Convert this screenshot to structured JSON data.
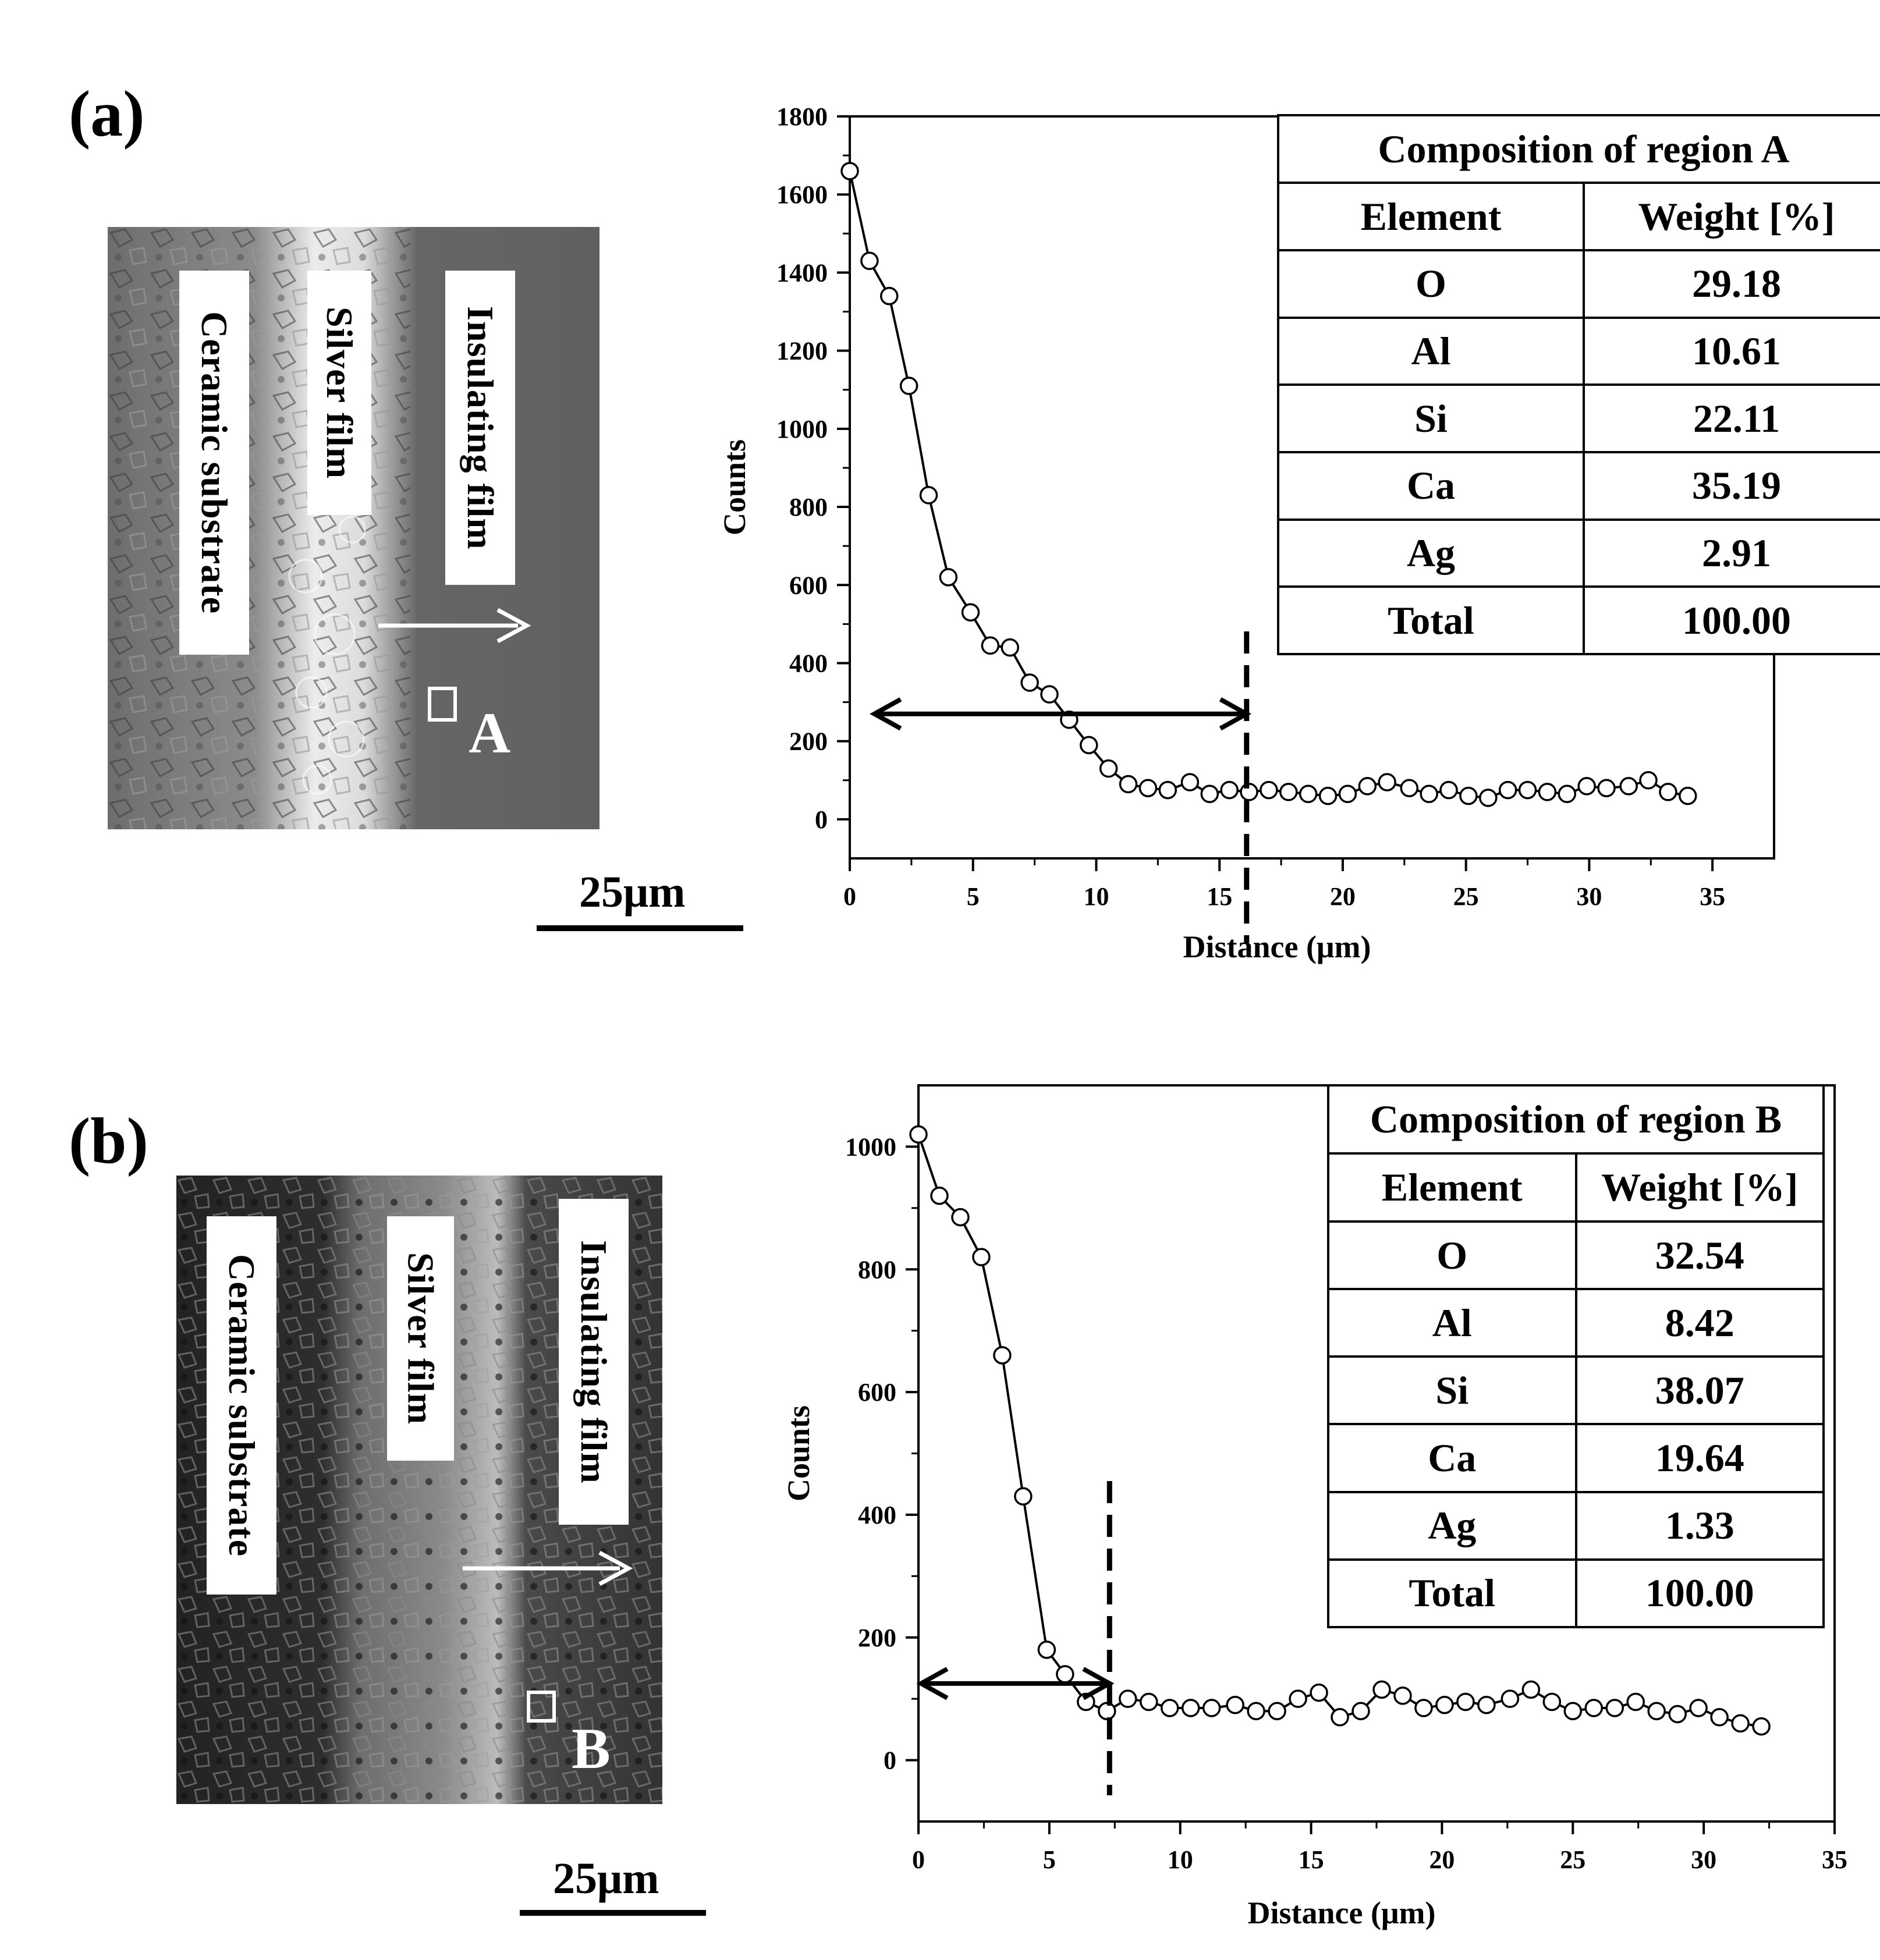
{
  "panels": [
    {
      "label": "(a)",
      "sem": {
        "layers": [
          "Ceramic substrate",
          "Silver film",
          "Insulating film"
        ],
        "region_marker": "A",
        "scale_bar": "25μm"
      },
      "table": {
        "title": "Composition of region A",
        "header": [
          "Element",
          "Weight [%]"
        ],
        "rows": [
          [
            "O",
            "29.18"
          ],
          [
            "Al",
            "10.61"
          ],
          [
            "Si",
            "22.11"
          ],
          [
            "Ca",
            "35.19"
          ],
          [
            "Ag",
            "2.91"
          ],
          [
            "Total",
            "100.00"
          ]
        ]
      }
    },
    {
      "label": "(b)",
      "sem": {
        "layers": [
          "Ceramic substrate",
          "Silver film",
          "Insulating film"
        ],
        "region_marker": "B",
        "scale_bar": "25μm"
      },
      "table": {
        "title": "Composition of region B",
        "header": [
          "Element",
          "Weight [%]"
        ],
        "rows": [
          [
            "O",
            "32.54"
          ],
          [
            "Al",
            "8.42"
          ],
          [
            "Si",
            "38.07"
          ],
          [
            "Ca",
            "19.64"
          ],
          [
            "Ag",
            "1.33"
          ],
          [
            "Total",
            "100.00"
          ]
        ]
      }
    }
  ],
  "chart_data": [
    {
      "type": "line",
      "xlabel": "Distance (μm)",
      "ylabel": "Counts",
      "xlim": [
        0,
        37.5
      ],
      "ylim": [
        -100,
        1800
      ],
      "xticks": [
        0,
        5,
        10,
        15,
        20,
        25,
        30,
        35
      ],
      "yticks": [
        0,
        200,
        400,
        600,
        800,
        1000,
        1200,
        1400,
        1600,
        1800
      ],
      "marker": "open-circle",
      "grid": false,
      "interface_line_x": 16.1,
      "arrow_x": [
        1.0,
        16.1
      ],
      "arrow_y": 270,
      "series": [
        {
          "x": [
            0.0,
            0.8,
            1.6,
            2.4,
            3.2,
            4.0,
            4.9,
            5.7,
            6.5,
            7.3,
            8.1,
            8.9,
            9.7,
            10.5,
            11.3,
            12.1,
            12.9,
            13.8,
            14.6,
            15.4,
            16.2,
            17.0,
            17.8,
            18.6,
            19.4,
            20.2,
            21.0,
            21.8,
            22.7,
            23.5,
            24.3,
            25.1,
            25.9,
            26.7,
            27.5,
            28.3,
            29.1,
            29.9,
            30.7,
            31.6,
            32.4,
            33.2,
            34.0
          ],
          "y": [
            1660,
            1430,
            1340,
            1110,
            830,
            620,
            530,
            445,
            440,
            350,
            320,
            255,
            190,
            130,
            90,
            80,
            75,
            95,
            65,
            75,
            70,
            75,
            70,
            65,
            60,
            65,
            85,
            95,
            80,
            65,
            75,
            60,
            55,
            75,
            75,
            70,
            65,
            85,
            80,
            85,
            100,
            70,
            60
          ]
        }
      ]
    },
    {
      "type": "line",
      "xlabel": "Distance (μm)",
      "ylabel": "Counts",
      "xlim": [
        0,
        35
      ],
      "ylim": [
        -100,
        1100
      ],
      "xticks": [
        0,
        5,
        10,
        15,
        20,
        25,
        30,
        35
      ],
      "yticks": [
        0,
        200,
        400,
        600,
        800,
        1000
      ],
      "marker": "open-circle",
      "grid": false,
      "interface_line_x": 7.3,
      "arrow_x": [
        0.1,
        7.3
      ],
      "arrow_y": 125,
      "series": [
        {
          "x": [
            0.0,
            0.8,
            1.6,
            2.4,
            3.2,
            4.0,
            4.9,
            5.6,
            6.4,
            7.2,
            8.0,
            8.8,
            9.6,
            10.4,
            11.2,
            12.1,
            12.9,
            13.7,
            14.5,
            15.3,
            16.1,
            16.9,
            17.7,
            18.5,
            19.3,
            20.1,
            20.9,
            21.7,
            22.6,
            23.4,
            24.2,
            25.0,
            25.8,
            26.6,
            27.4,
            28.2,
            29.0,
            29.8,
            30.6,
            31.4,
            32.2
          ],
          "y": [
            1020,
            920,
            885,
            820,
            660,
            430,
            180,
            140,
            95,
            80,
            100,
            95,
            85,
            85,
            85,
            90,
            80,
            80,
            100,
            110,
            70,
            80,
            115,
            105,
            85,
            90,
            95,
            90,
            100,
            115,
            95,
            80,
            85,
            85,
            95,
            80,
            75,
            85,
            70,
            60,
            55
          ]
        }
      ]
    }
  ]
}
